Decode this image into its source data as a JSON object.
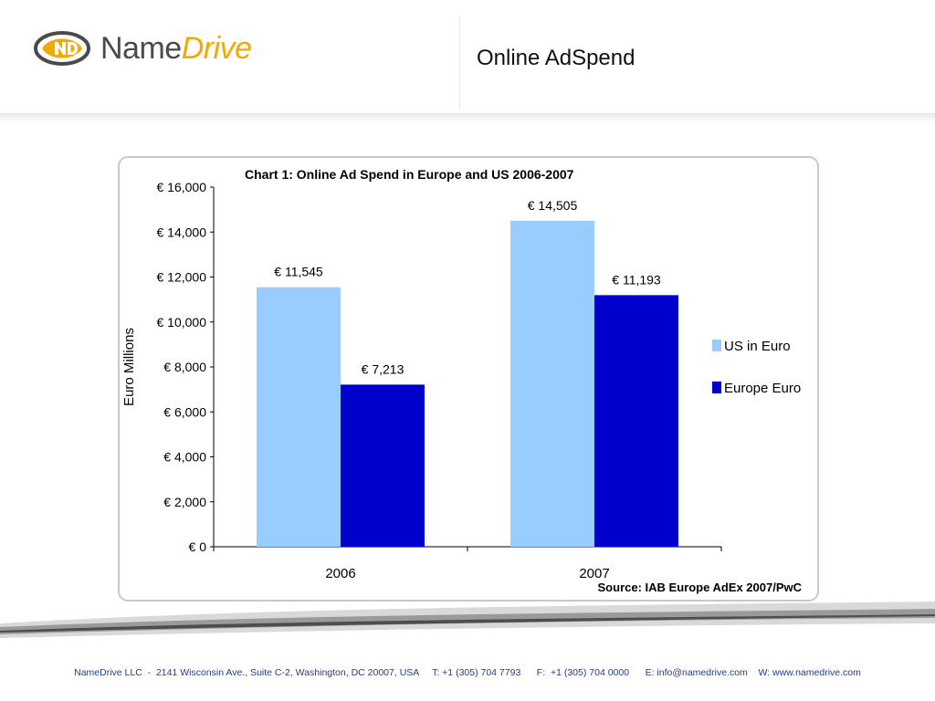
{
  "header": {
    "brand_name": "Name",
    "brand_accent": "Drive",
    "brand_color": "#f2a900",
    "title": "Online AdSpend"
  },
  "chart_data": {
    "type": "bar",
    "title": "Chart 1: Online Ad Spend in Europe and US 2006-2007",
    "ylabel": "Euro Millions",
    "xlabel": "",
    "categories": [
      "2006",
      "2007"
    ],
    "series": [
      {
        "name": "US in Euro",
        "values": [
          11545,
          14505
        ],
        "labels": [
          "€ 11,545",
          "€ 14,505"
        ],
        "color": "#99ccff"
      },
      {
        "name": "Europe Euro",
        "values": [
          7213,
          11193
        ],
        "labels": [
          "€ 7,213",
          "€ 11,193"
        ],
        "color": "#0000cc"
      }
    ],
    "yticks": [
      0,
      2000,
      4000,
      6000,
      8000,
      10000,
      12000,
      14000,
      16000
    ],
    "ytick_labels": [
      "€ 0",
      "€ 2,000",
      "€ 4,000",
      "€ 6,000",
      "€ 8,000",
      "€ 10,000",
      "€ 12,000",
      "€ 14,000",
      "€ 16,000"
    ],
    "ylim": [
      0,
      16000
    ],
    "legend_position": "right",
    "grid": false,
    "source": "Source: IAB Europe AdEx 2007/PwC"
  },
  "footer": {
    "text": "NameDrive LLC  -  2141 Wisconsin Ave., Suite C-2, Washington, DC 20007, USA     T: +1 (305) 704 7793      F:  +1 (305) 704 0000      E: info@namedrive.com    W: www.namedrive.com"
  }
}
